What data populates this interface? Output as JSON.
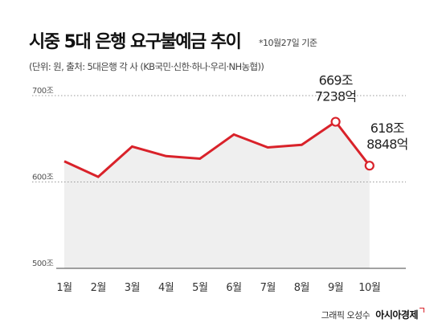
{
  "header": {
    "title": "시중 5대 은행 요구불예금 추이",
    "note": "*10월27일 기준",
    "subtitle": "(단위: 원, 출처: 5대은행 각 사 (KB국민·신한·하나·우리·NH농협))"
  },
  "credit": {
    "designer": "그래픽 오성수",
    "publisher": "아시아경제"
  },
  "colors": {
    "line": "#d9222a",
    "area": "#efefef",
    "grid": "#999999"
  },
  "chart_data": {
    "type": "line",
    "title": "시중 5대 은행 요구불예금 추이",
    "xlabel": "",
    "ylabel": "",
    "unit": "조",
    "categories": [
      "1월",
      "2월",
      "3월",
      "4월",
      "5월",
      "6월",
      "7월",
      "8월",
      "9월",
      "10월"
    ],
    "series": [
      {
        "values": [
          624,
          606,
          641,
          630,
          627,
          655,
          640,
          643,
          669.7238,
          618.8848
        ]
      }
    ],
    "ylim": [
      500,
      700
    ],
    "yticks": [
      500,
      600,
      700
    ],
    "ytick_labels": [
      "500조",
      "600조",
      "700조"
    ],
    "annotations": [
      {
        "category": "9월",
        "lines": [
          "669조",
          "7238억"
        ]
      },
      {
        "category": "10월",
        "lines": [
          "618조",
          "8848억"
        ]
      }
    ],
    "grid": "dotted horizontal at 600 and 700",
    "legend": "none"
  }
}
